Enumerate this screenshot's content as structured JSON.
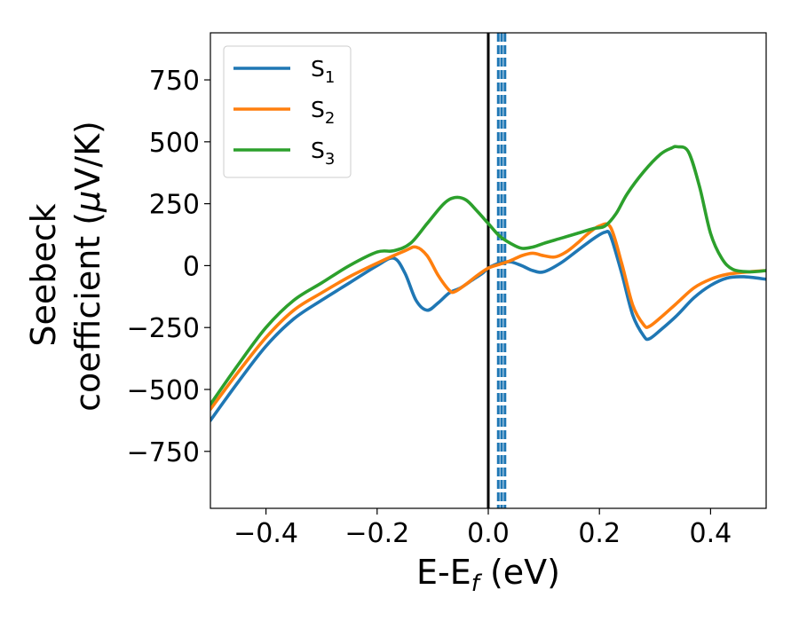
{
  "chart_data": {
    "type": "line",
    "xlabel": {
      "main": "E-E",
      "sub": "f",
      "unit": " (eV)"
    },
    "ylabel": {
      "line1": "Seebeck",
      "line2": "coefficient  (",
      "mu": "μ",
      "unit": "V/K)"
    },
    "xlim": [
      -0.5,
      0.5
    ],
    "ylim": [
      -980,
      940
    ],
    "xticks": [
      -0.4,
      -0.2,
      0.0,
      0.2,
      0.4
    ],
    "xtick_labels": [
      "−0.4",
      "−0.2",
      "0.0",
      "0.2",
      "0.4"
    ],
    "yticks": [
      750,
      500,
      250,
      0,
      -250,
      -500,
      -750
    ],
    "ytick_labels": [
      "750",
      "500",
      "250",
      "0",
      "−250",
      "−500",
      "−750"
    ],
    "grid": false,
    "legend_position": "top-left",
    "reference_lines": [
      {
        "x": 0.0,
        "style": "solid",
        "color": "#000000"
      },
      {
        "x": 0.018,
        "style": "dashed",
        "color": "#1f77b4"
      },
      {
        "x": 0.024,
        "style": "dashed",
        "color": "#1f77b4"
      },
      {
        "x": 0.03,
        "style": "dashed",
        "color": "#1f77b4"
      }
    ],
    "series": [
      {
        "name": "S",
        "sub": "1",
        "color": "#1f77b4",
        "x": [
          -0.5,
          -0.45,
          -0.4,
          -0.35,
          -0.3,
          -0.25,
          -0.2,
          -0.17,
          -0.15,
          -0.13,
          -0.11,
          -0.09,
          -0.07,
          -0.05,
          -0.03,
          -0.01,
          0.0,
          0.02,
          0.04,
          0.06,
          0.08,
          0.1,
          0.13,
          0.16,
          0.19,
          0.21,
          0.22,
          0.24,
          0.26,
          0.28,
          0.29,
          0.31,
          0.34,
          0.37,
          0.4,
          0.43,
          0.46,
          0.5
        ],
        "y": [
          -625,
          -470,
          -325,
          -215,
          -140,
          -70,
          0,
          30,
          -30,
          -140,
          -180,
          -150,
          -110,
          -90,
          -60,
          -30,
          -10,
          10,
          15,
          0,
          -20,
          -25,
          10,
          60,
          110,
          135,
          120,
          -30,
          -200,
          -285,
          -295,
          -260,
          -200,
          -130,
          -80,
          -50,
          -45,
          -55
        ]
      },
      {
        "name": "S",
        "sub": "2",
        "color": "#ff7f0e",
        "x": [
          -0.5,
          -0.45,
          -0.4,
          -0.35,
          -0.3,
          -0.25,
          -0.2,
          -0.15,
          -0.13,
          -0.11,
          -0.09,
          -0.07,
          -0.06,
          -0.04,
          -0.02,
          0.0,
          0.02,
          0.04,
          0.06,
          0.08,
          0.1,
          0.12,
          0.14,
          0.16,
          0.18,
          0.2,
          0.22,
          0.24,
          0.26,
          0.28,
          0.29,
          0.31,
          0.34,
          0.37,
          0.4,
          0.43,
          0.47,
          0.5
        ],
        "y": [
          -580,
          -430,
          -290,
          -180,
          -110,
          -45,
          10,
          60,
          75,
          40,
          -40,
          -100,
          -105,
          -75,
          -40,
          -10,
          5,
          20,
          40,
          50,
          40,
          35,
          55,
          90,
          130,
          160,
          155,
          10,
          -160,
          -240,
          -245,
          -210,
          -150,
          -90,
          -55,
          -35,
          -25,
          -20
        ]
      },
      {
        "name": "S",
        "sub": "3",
        "color": "#2ca02c",
        "x": [
          -0.5,
          -0.45,
          -0.4,
          -0.35,
          -0.3,
          -0.25,
          -0.2,
          -0.17,
          -0.14,
          -0.11,
          -0.08,
          -0.06,
          -0.04,
          -0.02,
          0.0,
          0.02,
          0.04,
          0.06,
          0.08,
          0.1,
          0.13,
          0.16,
          0.19,
          0.21,
          0.23,
          0.25,
          0.28,
          0.31,
          0.33,
          0.34,
          0.36,
          0.38,
          0.4,
          0.42,
          0.44,
          0.47,
          0.5
        ],
        "y": [
          -560,
          -400,
          -250,
          -140,
          -70,
          0,
          55,
          60,
          90,
          170,
          250,
          275,
          265,
          220,
          170,
          120,
          90,
          70,
          75,
          90,
          110,
          130,
          150,
          160,
          210,
          290,
          380,
          450,
          475,
          480,
          460,
          320,
          130,
          30,
          -15,
          -25,
          -20
        ]
      }
    ]
  }
}
